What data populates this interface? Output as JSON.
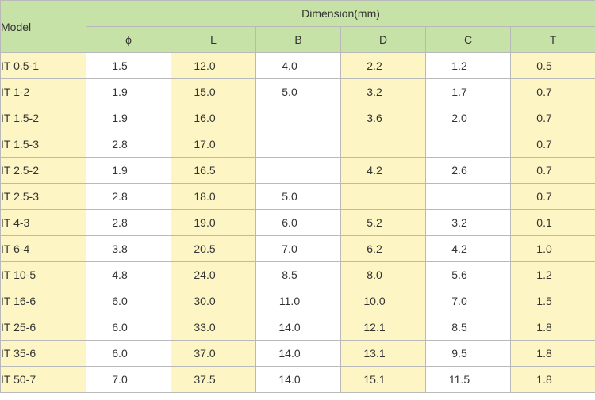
{
  "table": {
    "model_header": "Model",
    "dimension_header": "Dimension(mm)",
    "columns": [
      "ϕ",
      "L",
      "B",
      "D",
      "C",
      "T"
    ],
    "rows": [
      {
        "model": "IT 0.5-1",
        "phi": "1.5",
        "L": "12.0",
        "B": "4.0",
        "D": "2.2",
        "C": "1.2",
        "T": "0.5"
      },
      {
        "model": "IT 1-2",
        "phi": "1.9",
        "L": "15.0",
        "B": "5.0",
        "D": "3.2",
        "C": "1.7",
        "T": "0.7"
      },
      {
        "model": "IT 1.5-2",
        "phi": "1.9",
        "L": "16.0",
        "B": "",
        "D": "3.6",
        "C": "2.0",
        "T": "0.7"
      },
      {
        "model": "IT 1.5-3",
        "phi": "2.8",
        "L": "17.0",
        "B": "",
        "D": "",
        "C": "",
        "T": "0.7"
      },
      {
        "model": "IT 2.5-2",
        "phi": "1.9",
        "L": "16.5",
        "B": "",
        "D": "4.2",
        "C": "2.6",
        "T": "0.7"
      },
      {
        "model": "IT 2.5-3",
        "phi": "2.8",
        "L": "18.0",
        "B": "5.0",
        "D": "",
        "C": "",
        "T": "0.7"
      },
      {
        "model": "IT 4-3",
        "phi": "2.8",
        "L": "19.0",
        "B": "6.0",
        "D": "5.2",
        "C": "3.2",
        "T": "0.1"
      },
      {
        "model": "IT 6-4",
        "phi": "3.8",
        "L": "20.5",
        "B": "7.0",
        "D": "6.2",
        "C": "4.2",
        "T": "1.0"
      },
      {
        "model": "IT 10-5",
        "phi": "4.8",
        "L": "24.0",
        "B": "8.5",
        "D": "8.0",
        "C": "5.6",
        "T": "1.2"
      },
      {
        "model": "IT 16-6",
        "phi": "6.0",
        "L": "30.0",
        "B": "11.0",
        "D": "10.0",
        "C": "7.0",
        "T": "1.5"
      },
      {
        "model": "IT 25-6",
        "phi": "6.0",
        "L": "33.0",
        "B": "14.0",
        "D": "12.1",
        "C": "8.5",
        "T": "1.8"
      },
      {
        "model": "IT 35-6",
        "phi": "6.0",
        "L": "37.0",
        "B": "14.0",
        "D": "13.1",
        "C": "9.5",
        "T": "1.8"
      },
      {
        "model": "IT 50-7",
        "phi": "7.0",
        "L": "37.5",
        "B": "14.0",
        "D": "15.1",
        "C": "11.5",
        "T": "1.8"
      }
    ]
  }
}
